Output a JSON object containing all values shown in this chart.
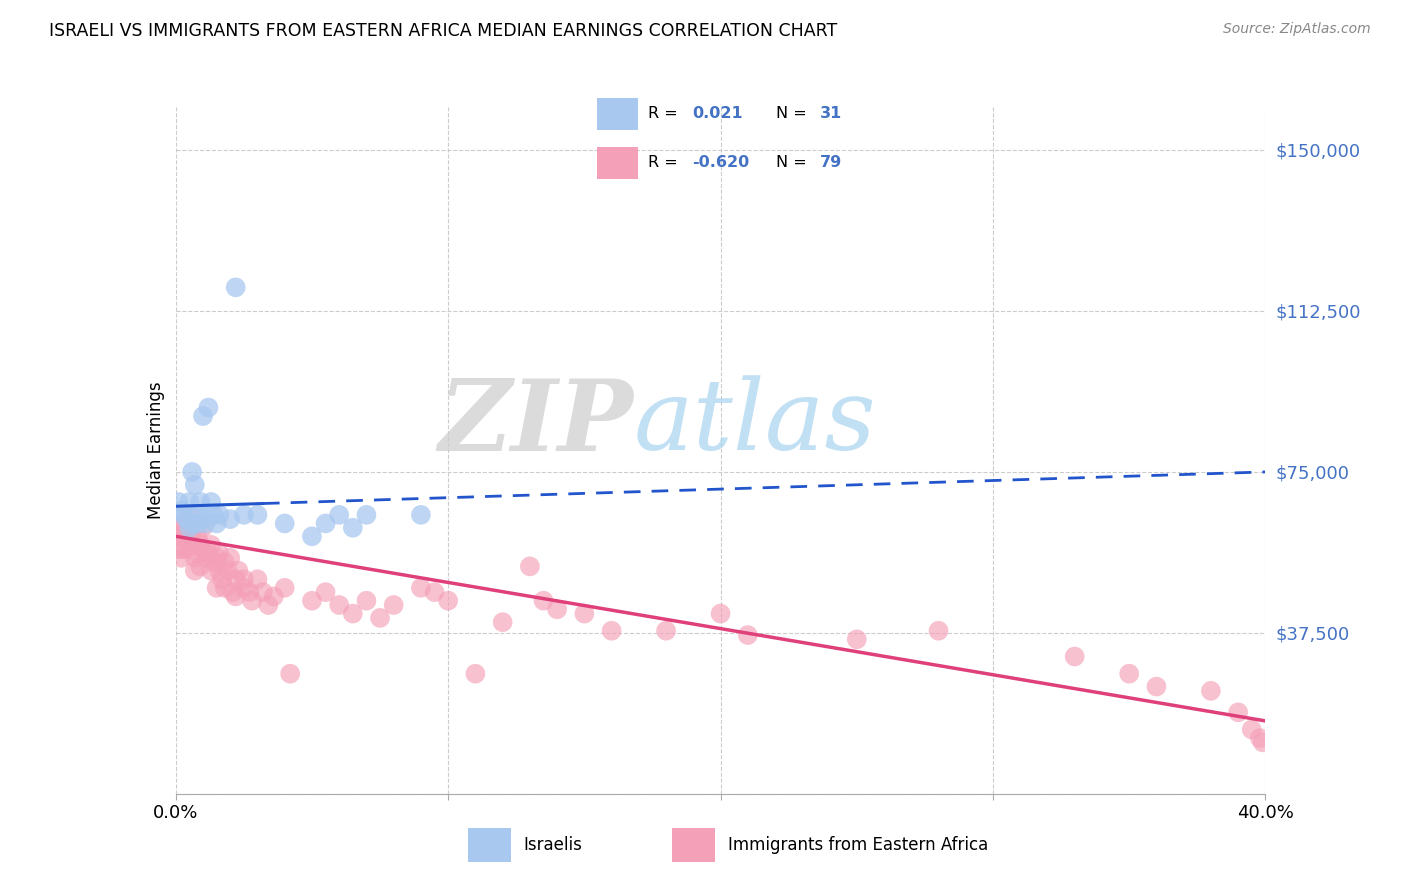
{
  "title": "ISRAELI VS IMMIGRANTS FROM EASTERN AFRICA MEDIAN EARNINGS CORRELATION CHART",
  "source": "Source: ZipAtlas.com",
  "ylabel": "Median Earnings",
  "yticks": [
    0,
    37500,
    75000,
    112500,
    150000
  ],
  "ytick_labels": [
    "",
    "$37,500",
    "$75,000",
    "$112,500",
    "$150,000"
  ],
  "xlim": [
    0.0,
    0.4
  ],
  "ylim": [
    0,
    160000
  ],
  "israeli_color": "#a8c8f0",
  "immigrant_color": "#f4a0b8",
  "israeli_line_color": "#2255cc",
  "immigrant_line_color": "#e0407a",
  "watermark_zip": "ZIP",
  "watermark_atlas": "atlas",
  "israeli_x": [
    0.001,
    0.002,
    0.003,
    0.004,
    0.005,
    0.005,
    0.006,
    0.006,
    0.007,
    0.008,
    0.008,
    0.009,
    0.01,
    0.01,
    0.011,
    0.012,
    0.013,
    0.014,
    0.015,
    0.016,
    0.02,
    0.022,
    0.025,
    0.03,
    0.04,
    0.05,
    0.055,
    0.06,
    0.065,
    0.07,
    0.09
  ],
  "israeli_y": [
    68000,
    66000,
    65000,
    64000,
    62000,
    68000,
    75000,
    63000,
    72000,
    65000,
    63000,
    68000,
    88000,
    64000,
    63000,
    90000,
    68000,
    65000,
    63000,
    65000,
    64000,
    118000,
    65000,
    65000,
    63000,
    60000,
    63000,
    65000,
    62000,
    65000,
    65000
  ],
  "immigrant_x": [
    0.001,
    0.001,
    0.002,
    0.002,
    0.003,
    0.003,
    0.003,
    0.004,
    0.004,
    0.005,
    0.005,
    0.006,
    0.006,
    0.007,
    0.007,
    0.008,
    0.008,
    0.009,
    0.009,
    0.01,
    0.01,
    0.011,
    0.012,
    0.013,
    0.013,
    0.014,
    0.015,
    0.015,
    0.016,
    0.016,
    0.017,
    0.018,
    0.018,
    0.019,
    0.02,
    0.021,
    0.022,
    0.022,
    0.023,
    0.025,
    0.025,
    0.027,
    0.028,
    0.03,
    0.032,
    0.034,
    0.036,
    0.04,
    0.042,
    0.05,
    0.055,
    0.06,
    0.065,
    0.07,
    0.075,
    0.08,
    0.09,
    0.095,
    0.1,
    0.11,
    0.12,
    0.13,
    0.135,
    0.14,
    0.15,
    0.16,
    0.18,
    0.2,
    0.21,
    0.25,
    0.28,
    0.33,
    0.35,
    0.36,
    0.38,
    0.39,
    0.395,
    0.398,
    0.399
  ],
  "immigrant_y": [
    62000,
    57000,
    60000,
    55000,
    63000,
    60000,
    57000,
    62000,
    57000,
    65000,
    60000,
    62000,
    58000,
    55000,
    52000,
    60000,
    56000,
    58000,
    53000,
    57000,
    62000,
    55000,
    56000,
    52000,
    58000,
    54000,
    55000,
    48000,
    52000,
    56000,
    50000,
    54000,
    48000,
    52000,
    55000,
    47000,
    50000,
    46000,
    52000,
    48000,
    50000,
    47000,
    45000,
    50000,
    47000,
    44000,
    46000,
    48000,
    28000,
    45000,
    47000,
    44000,
    42000,
    45000,
    41000,
    44000,
    48000,
    47000,
    45000,
    28000,
    40000,
    53000,
    45000,
    43000,
    42000,
    38000,
    38000,
    42000,
    37000,
    36000,
    38000,
    32000,
    28000,
    25000,
    24000,
    19000,
    15000,
    13000,
    12000
  ]
}
